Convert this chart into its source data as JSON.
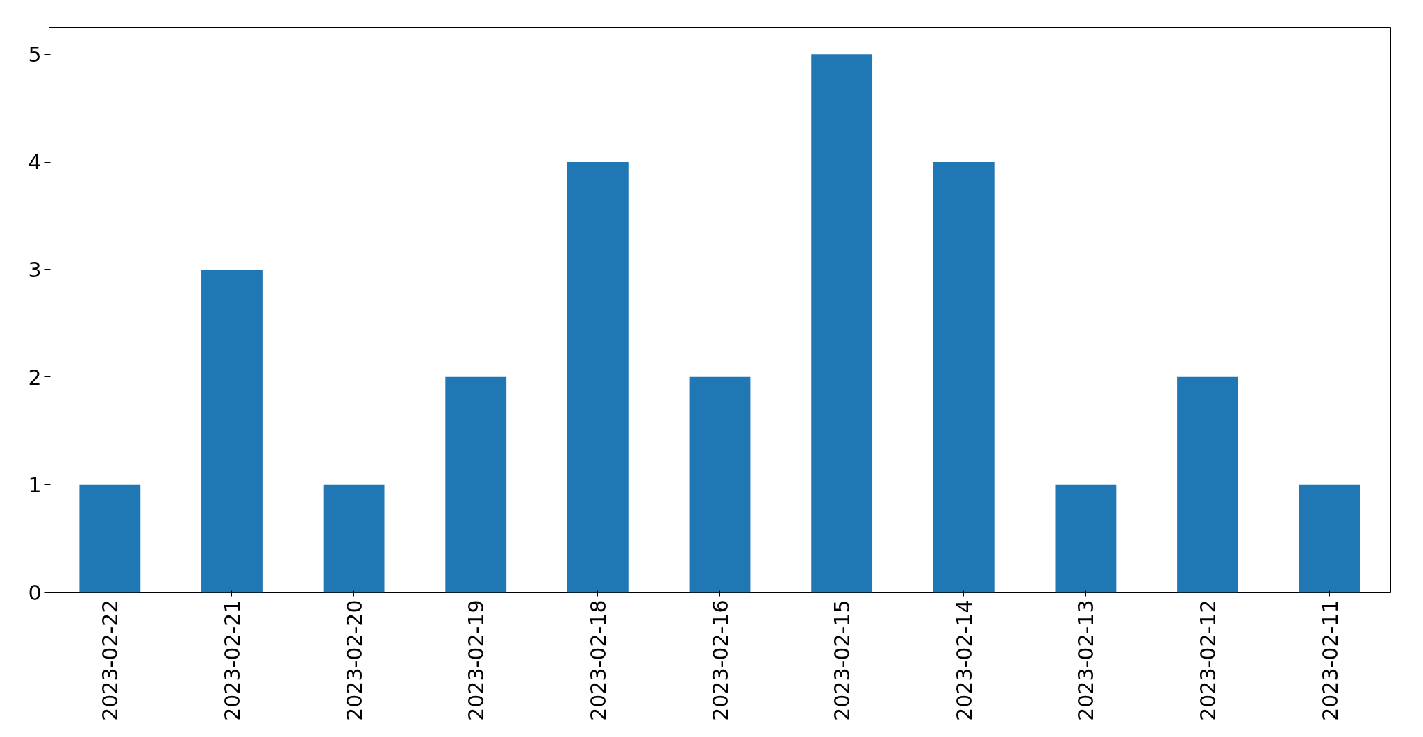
{
  "chart_data": {
    "type": "bar",
    "categories": [
      "2023-02-22",
      "2023-02-21",
      "2023-02-20",
      "2023-02-19",
      "2023-02-18",
      "2023-02-16",
      "2023-02-15",
      "2023-02-14",
      "2023-02-13",
      "2023-02-12",
      "2023-02-11"
    ],
    "values": [
      1,
      3,
      1,
      2,
      4,
      2,
      5,
      4,
      1,
      2,
      1
    ],
    "color": "#1f77b4",
    "ylim": [
      0,
      5.25
    ],
    "yticks": [
      0,
      1,
      2,
      3,
      4,
      5
    ],
    "grid": false
  }
}
